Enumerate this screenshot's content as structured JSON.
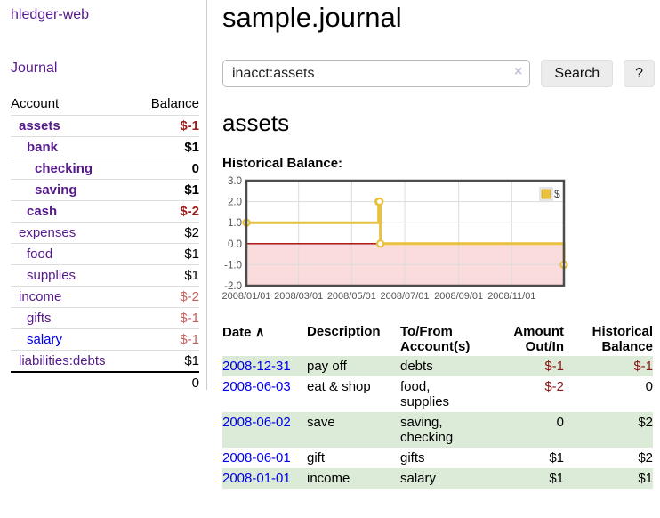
{
  "sidebar": {
    "app_title": "hledger-web",
    "nav": {
      "journal_label": "Journal"
    },
    "accounts_table": {
      "account_header": "Account",
      "balance_header": "Balance",
      "rows": [
        {
          "name": "assets",
          "balance": "$-1",
          "indent": 0,
          "bold": true,
          "balance_class": "neg",
          "link": "purple"
        },
        {
          "name": "bank",
          "balance": "$1",
          "indent": 1,
          "bold": true,
          "balance_class": "pos",
          "link": "purple"
        },
        {
          "name": "checking",
          "balance": "0",
          "indent": 2,
          "bold": true,
          "balance_class": "pos",
          "link": "purple"
        },
        {
          "name": "saving",
          "balance": "$1",
          "indent": 2,
          "bold": true,
          "balance_class": "pos",
          "link": "purple"
        },
        {
          "name": "cash",
          "balance": "$-2",
          "indent": 1,
          "bold": true,
          "balance_class": "neg",
          "link": "purple"
        },
        {
          "name": "expenses",
          "balance": "$2",
          "indent": 0,
          "bold": false,
          "balance_class": "pos",
          "link": "purple"
        },
        {
          "name": "food",
          "balance": "$1",
          "indent": 1,
          "bold": false,
          "balance_class": "pos",
          "link": "purple"
        },
        {
          "name": "supplies",
          "balance": "$1",
          "indent": 1,
          "bold": false,
          "balance_class": "pos",
          "link": "purple"
        },
        {
          "name": "income",
          "balance": "$-2",
          "indent": 0,
          "bold": false,
          "balance_class": "neg-dim",
          "link": "purple"
        },
        {
          "name": "gifts",
          "balance": "$-1",
          "indent": 1,
          "bold": false,
          "balance_class": "neg-dim",
          "link": "purple"
        },
        {
          "name": "salary",
          "balance": "$-1",
          "indent": 1,
          "bold": false,
          "balance_class": "neg-dim",
          "link": "blue"
        },
        {
          "name": "liabilities:debts",
          "balance": "$1",
          "indent": 0,
          "bold": false,
          "balance_class": "pos",
          "link": "purple"
        }
      ],
      "total": "0"
    }
  },
  "header": {
    "title": "sample.journal"
  },
  "search": {
    "value": "inacct:assets",
    "clear_icon": "×",
    "search_button": "Search",
    "help_button": "?"
  },
  "account_page": {
    "heading": "assets",
    "chart_label": "Historical Balance:"
  },
  "chart_data": {
    "type": "line",
    "step": true,
    "title": "Historical Balance:",
    "series": [
      {
        "name": "$",
        "points": [
          {
            "date": "2008-01-01",
            "day": 0,
            "value": 1
          },
          {
            "date": "2008-06-01",
            "day": 152,
            "value": 2
          },
          {
            "date": "2008-06-02",
            "day": 153,
            "value": 2
          },
          {
            "date": "2008-06-03",
            "day": 154,
            "value": 0
          },
          {
            "date": "2008-12-31",
            "day": 365,
            "value": -1
          }
        ]
      }
    ],
    "x_range_days": [
      0,
      365
    ],
    "ylim": [
      -2,
      3
    ],
    "y_ticks": [
      {
        "label": "3.0",
        "value": 3
      },
      {
        "label": "2.0",
        "value": 2
      },
      {
        "label": "1.0",
        "value": 1
      },
      {
        "label": "0.0",
        "value": 0
      },
      {
        "label": "-1.0",
        "value": -1
      },
      {
        "label": "-2.0",
        "value": -2
      }
    ],
    "x_ticks": [
      {
        "label": "2008/01/01",
        "day": 0
      },
      {
        "label": "2008/03/01",
        "day": 60
      },
      {
        "label": "2008/05/01",
        "day": 121
      },
      {
        "label": "2008/07/01",
        "day": 182
      },
      {
        "label": "2008/09/01",
        "day": 244
      },
      {
        "label": "2008/11/01",
        "day": 305
      }
    ],
    "legend": {
      "label": "$",
      "position": "top-right"
    },
    "grid": true,
    "colors": {
      "line": "#e9c13f",
      "marker_fill": "#ffffff",
      "negative_region": "#fbdcdc",
      "zero_line": "#a40000",
      "gridline": "#dcdcdc",
      "border": "#4d4d4d",
      "axis_text": "#545454"
    }
  },
  "transactions": {
    "columns": {
      "date": "Date",
      "date_sort_indicator": "∧",
      "description": "Description",
      "tofrom": "To/From Account(s)",
      "amount": "Amount Out/In",
      "balance": "Historical Balance"
    },
    "rows": [
      {
        "date": "2008-12-31",
        "description": "pay off",
        "accounts": "debts",
        "amount": "$-1",
        "balance": "$-1",
        "green": true
      },
      {
        "date": "2008-06-03",
        "description": "eat & shop",
        "accounts": "food, supplies",
        "amount": "$-2",
        "balance": "0",
        "green": false
      },
      {
        "date": "2008-06-02",
        "description": "save",
        "accounts": "saving, checking",
        "amount": "0",
        "balance": "$2",
        "green": true
      },
      {
        "date": "2008-06-01",
        "description": "gift",
        "accounts": "gifts",
        "amount": "$1",
        "balance": "$2",
        "green": false
      },
      {
        "date": "2008-01-01",
        "description": "income",
        "accounts": "salary",
        "amount": "$1",
        "balance": "$1",
        "green": true
      }
    ]
  }
}
